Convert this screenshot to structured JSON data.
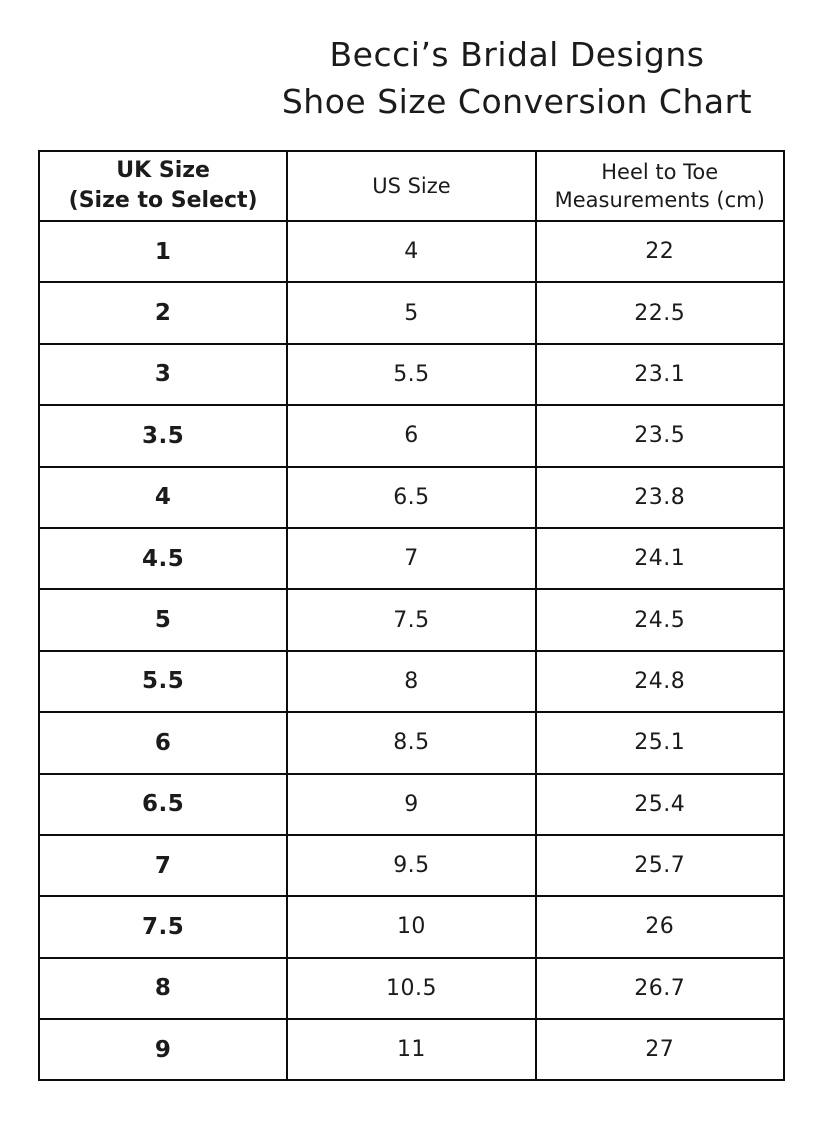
{
  "title": {
    "line1": "Becci’s Bridal Designs",
    "line2": "Shoe Size Conversion Chart"
  },
  "table": {
    "headers": [
      {
        "line1": "UK Size",
        "line2": "(Size to Select)"
      },
      {
        "line1": "US Size",
        "line2": ""
      },
      {
        "line1": "Heel to Toe",
        "line2": "Measurements (cm)"
      }
    ],
    "rows": [
      {
        "uk": "1",
        "us": "4",
        "cm": "22"
      },
      {
        "uk": "2",
        "us": "5",
        "cm": "22.5"
      },
      {
        "uk": "3",
        "us": "5.5",
        "cm": "23.1"
      },
      {
        "uk": "3.5",
        "us": "6",
        "cm": "23.5"
      },
      {
        "uk": "4",
        "us": "6.5",
        "cm": "23.8"
      },
      {
        "uk": "4.5",
        "us": "7",
        "cm": "24.1"
      },
      {
        "uk": "5",
        "us": "7.5",
        "cm": "24.5"
      },
      {
        "uk": "5.5",
        "us": "8",
        "cm": "24.8"
      },
      {
        "uk": "6",
        "us": "8.5",
        "cm": "25.1"
      },
      {
        "uk": "6.5",
        "us": "9",
        "cm": "25.4"
      },
      {
        "uk": "7",
        "us": "9.5",
        "cm": "25.7"
      },
      {
        "uk": "7.5",
        "us": "10",
        "cm": "26"
      },
      {
        "uk": "8",
        "us": "10.5",
        "cm": "26.7"
      },
      {
        "uk": "9",
        "us": "11",
        "cm": "27"
      }
    ]
  },
  "colors": {
    "text": "#1b1b1b",
    "border": "#0d0d0d",
    "background": "#ffffff"
  }
}
